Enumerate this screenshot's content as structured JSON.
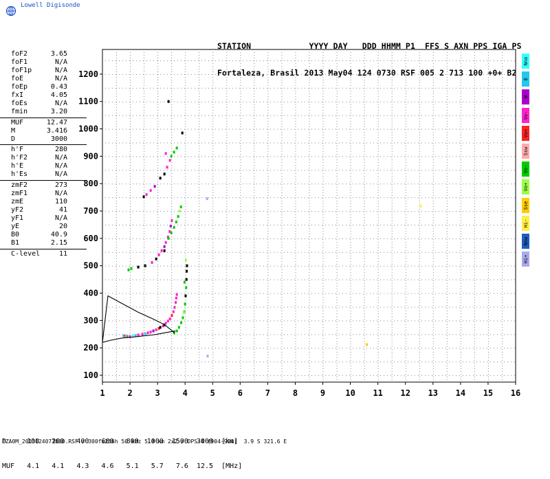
{
  "logo": {
    "text": "Lowell Digisonde",
    "icon": "globe-icon"
  },
  "header": {
    "line1": "STATION            YYYY DAY   DDD HHMM P1  FFS S AXN PPS IGA PS",
    "line2": "Fortaleza, Brasil 2013 May04 124 0730 RSF 005 2 713 100 +0+ B2"
  },
  "params": [
    [
      {
        "name": "foF2",
        "value": "3.65"
      },
      {
        "name": "foF1",
        "value": "N/A"
      },
      {
        "name": "foF1p",
        "value": "N/A"
      },
      {
        "name": "foE",
        "value": "N/A"
      },
      {
        "name": "foEp",
        "value": "0.43"
      },
      {
        "name": "fxI",
        "value": "4.05"
      },
      {
        "name": "foEs",
        "value": "N/A"
      },
      {
        "name": "fmin",
        "value": "3.20"
      }
    ],
    [
      {
        "name": "MUF",
        "value": "12.47"
      },
      {
        "name": "M",
        "value": "3.416"
      },
      {
        "name": "D",
        "value": "3000"
      }
    ],
    [
      {
        "name": "h'F",
        "value": "280"
      },
      {
        "name": "h'F2",
        "value": "N/A"
      },
      {
        "name": "h'E",
        "value": "N/A"
      },
      {
        "name": "h'Es",
        "value": "N/A"
      }
    ],
    [
      {
        "name": "zmF2",
        "value": "273"
      },
      {
        "name": "zmF1",
        "value": "N/A"
      },
      {
        "name": "zmE",
        "value": "110"
      },
      {
        "name": "yF2",
        "value": "41"
      },
      {
        "name": "yF1",
        "value": "N/A"
      },
      {
        "name": "yE",
        "value": "20"
      },
      {
        "name": "B0",
        "value": "40.9"
      },
      {
        "name": "B1",
        "value": "2.15"
      }
    ],
    [
      {
        "name": "C-level",
        "value": "11"
      }
    ]
  ],
  "legend": [
    {
      "label": "Nno",
      "color": "#33ffff"
    },
    {
      "label": "E",
      "color": "#22c8ee"
    },
    {
      "label": "W",
      "color": "#aa00cc"
    },
    {
      "label": "Vo-",
      "color": "#ff22cc"
    },
    {
      "label": "Vo+",
      "color": "#ff2222"
    },
    {
      "label": "Ssw",
      "color": "#ffaaaa"
    },
    {
      "label": "Vo-",
      "color": "#00cc00"
    },
    {
      "label": "Vo+",
      "color": "#99ff44"
    },
    {
      "label": "Sse",
      "color": "#ffcc00"
    },
    {
      "label": "Hi-",
      "color": "#ffee44"
    },
    {
      "label": "Nnw",
      "color": "#1e5fc0"
    },
    {
      "label": "Hi+",
      "color": "#aaaaee"
    }
  ],
  "muf_table": {
    "line1": "D     100   200   400   600   800  1000  1500  3000  [km]",
    "line2": "MUF   4.1   4.1   4.3   4.6   5.1   5.7   7.6  12.5  [MHz]"
  },
  "footer": "FZA0M_2013124073000.RSF / 300fx256h 50 kHz 5.0 km 2x2 / DPS-4 (904-904)  3.9 S 321.6 E",
  "chart_data": {
    "type": "scatter",
    "xlabel": "",
    "ylabel": "",
    "xlim": [
      1,
      16
    ],
    "ylim": [
      75,
      1290
    ],
    "x_ticks": [
      1,
      2,
      3,
      4,
      5,
      6,
      7,
      8,
      9,
      10,
      11,
      12,
      13,
      14,
      15,
      16
    ],
    "y_ticks": [
      100,
      200,
      300,
      400,
      500,
      600,
      700,
      800,
      900,
      1000,
      1100,
      1200
    ],
    "grid": true,
    "profile": {
      "color": "#000000",
      "x": [
        3.62,
        3.5,
        3.25,
        2.85,
        2.3,
        1.75,
        1.2,
        1.0,
        1.3,
        1.7,
        2.15,
        2.5,
        2.8,
        3.0,
        3.15,
        3.3,
        3.48,
        3.65
      ],
      "y": [
        255,
        265,
        285,
        305,
        330,
        360,
        390,
        220,
        228,
        236,
        240,
        244,
        247,
        250,
        253,
        256,
        259,
        262
      ]
    },
    "series": [
      {
        "name": "F-trace-low",
        "points": [
          [
            1.75,
            245,
            "#33ffff"
          ],
          [
            1.8,
            244,
            "#ff22cc"
          ],
          [
            1.9,
            242,
            "#00cc00"
          ],
          [
            2.0,
            241,
            "#ff22cc"
          ],
          [
            2.1,
            243,
            "#33ffff"
          ],
          [
            2.2,
            245,
            "#22c8ee"
          ],
          [
            2.3,
            247,
            "#ff22cc"
          ],
          [
            2.45,
            250,
            "#ff22cc"
          ],
          [
            2.55,
            252,
            "#22c8ee"
          ],
          [
            2.65,
            255,
            "#ff22cc"
          ],
          [
            2.75,
            258,
            "#ff22cc"
          ],
          [
            2.85,
            262,
            "#aa00cc"
          ],
          [
            2.95,
            266,
            "#ff22cc"
          ],
          [
            3.05,
            271,
            "#ff2222"
          ],
          [
            3.1,
            275,
            "#000000"
          ],
          [
            3.2,
            280,
            "#ff22cc"
          ],
          [
            3.25,
            284,
            "#000000"
          ],
          [
            3.3,
            290,
            "#ff22cc"
          ],
          [
            3.38,
            298,
            "#ff22cc"
          ],
          [
            3.45,
            306,
            "#ff22cc"
          ],
          [
            3.52,
            318,
            "#ff2222"
          ],
          [
            3.58,
            332,
            "#ff22cc"
          ],
          [
            3.62,
            348,
            "#ff22cc"
          ],
          [
            3.66,
            366,
            "#ff22cc"
          ],
          [
            3.68,
            382,
            "#ff22cc"
          ],
          [
            3.7,
            395,
            "#ff22cc"
          ],
          [
            3.6,
            255,
            "#00cc00"
          ],
          [
            3.7,
            262,
            "#00cc00"
          ],
          [
            3.78,
            275,
            "#00cc00"
          ],
          [
            3.86,
            292,
            "#00cc00"
          ],
          [
            3.92,
            310,
            "#00cc00"
          ],
          [
            3.97,
            332,
            "#00cc00"
          ],
          [
            4.0,
            360,
            "#00cc00"
          ],
          [
            4.02,
            390,
            "#000000"
          ],
          [
            4.04,
            420,
            "#00cc00"
          ],
          [
            4.05,
            450,
            "#000000"
          ],
          [
            4.06,
            480,
            "#000000"
          ],
          [
            4.07,
            500,
            "#000000"
          ],
          [
            3.95,
            330,
            "#99ff44"
          ],
          [
            3.98,
            440,
            "#00cc00"
          ],
          [
            4.03,
            520,
            "#99ff44"
          ]
        ]
      },
      {
        "name": "F-trace-mid",
        "points": [
          [
            1.95,
            485,
            "#00cc00"
          ],
          [
            2.05,
            490,
            "#00cc00"
          ],
          [
            2.3,
            495,
            "#000000"
          ],
          [
            2.55,
            500,
            "#000000"
          ],
          [
            2.8,
            512,
            "#ff22cc"
          ],
          [
            2.95,
            525,
            "#000000"
          ],
          [
            3.05,
            540,
            "#ff22cc"
          ],
          [
            3.15,
            555,
            "#ff22cc"
          ],
          [
            3.25,
            570,
            "#aa00cc"
          ],
          [
            3.3,
            585,
            "#ff22cc"
          ],
          [
            3.38,
            605,
            "#ff22cc"
          ],
          [
            3.44,
            625,
            "#ff22cc"
          ],
          [
            3.48,
            645,
            "#aa00cc"
          ],
          [
            3.52,
            665,
            "#ff22cc"
          ],
          [
            3.5,
            620,
            "#00cc00"
          ],
          [
            3.6,
            640,
            "#00cc00"
          ],
          [
            3.68,
            660,
            "#00cc00"
          ],
          [
            3.75,
            680,
            "#00cc00"
          ],
          [
            3.8,
            700,
            "#99ff44"
          ],
          [
            3.85,
            715,
            "#00cc00"
          ],
          [
            3.4,
            600,
            "#00cc00"
          ],
          [
            3.25,
            555,
            "#000000"
          ]
        ]
      },
      {
        "name": "F-trace-high",
        "points": [
          [
            2.5,
            752,
            "#000000"
          ],
          [
            2.6,
            760,
            "#ff22cc"
          ],
          [
            2.75,
            775,
            "#ff22cc"
          ],
          [
            2.9,
            790,
            "#aa00cc"
          ],
          [
            3.1,
            820,
            "#000000"
          ],
          [
            3.25,
            835,
            "#000000"
          ],
          [
            3.35,
            860,
            "#ff22cc"
          ],
          [
            3.45,
            885,
            "#ff22cc"
          ],
          [
            3.5,
            900,
            "#00cc00"
          ],
          [
            3.6,
            915,
            "#00cc00"
          ],
          [
            3.7,
            930,
            "#00cc00"
          ],
          [
            3.3,
            910,
            "#ff22cc"
          ],
          [
            3.9,
            985,
            "#000000"
          ],
          [
            3.4,
            1100,
            "#000000"
          ]
        ]
      },
      {
        "name": "isolated",
        "points": [
          [
            4.8,
            745,
            "#aaaaee"
          ],
          [
            4.82,
            170,
            "#aaaaee"
          ],
          [
            10.6,
            212,
            "#ffcc00"
          ],
          [
            12.55,
            718,
            "#ffee44"
          ]
        ]
      }
    ]
  }
}
